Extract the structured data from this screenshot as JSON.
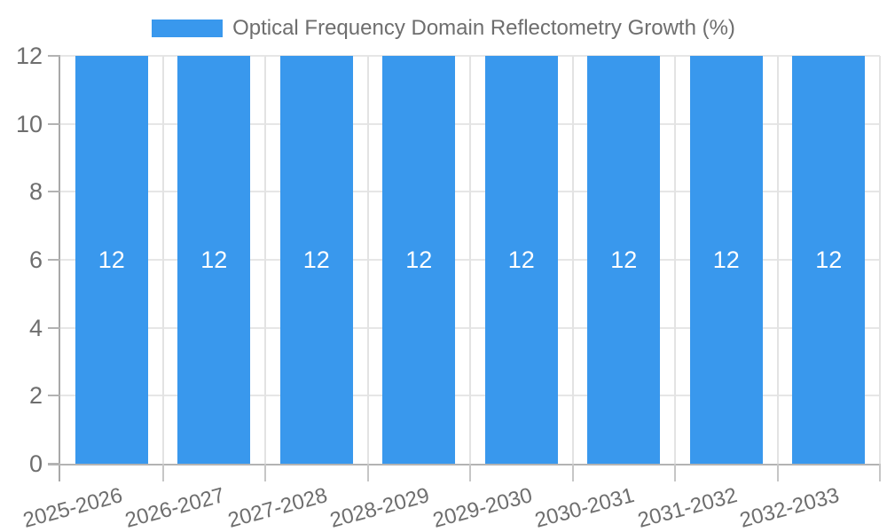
{
  "legend": {
    "label": "Optical Frequency Domain Reflectometry Growth (%)"
  },
  "chart_data": {
    "type": "bar",
    "title": "Optical Frequency Domain Reflectometry Growth (%)",
    "categories": [
      "2025-2026",
      "2026-2027",
      "2027-2028",
      "2028-2029",
      "2029-2030",
      "2030-2031",
      "2031-2032",
      "2032-2033"
    ],
    "values": [
      12,
      12,
      12,
      12,
      12,
      12,
      12,
      12
    ],
    "bar_value_labels": [
      "12",
      "12",
      "12",
      "12",
      "12",
      "12",
      "12",
      "12"
    ],
    "xlabel": "",
    "ylabel": "",
    "ylim": [
      0,
      12
    ],
    "yticks": [
      0,
      2,
      4,
      6,
      8,
      10,
      12
    ],
    "grid": "on",
    "legend_position": "top-center",
    "colors": {
      "bar": "#3998ed",
      "bar_label": "#ffffff",
      "axis_text": "#6e6e6e",
      "gridline": "#e6e6e6",
      "axis_line": "#a8a8a8",
      "tick_line": "#b3b3b3"
    }
  }
}
